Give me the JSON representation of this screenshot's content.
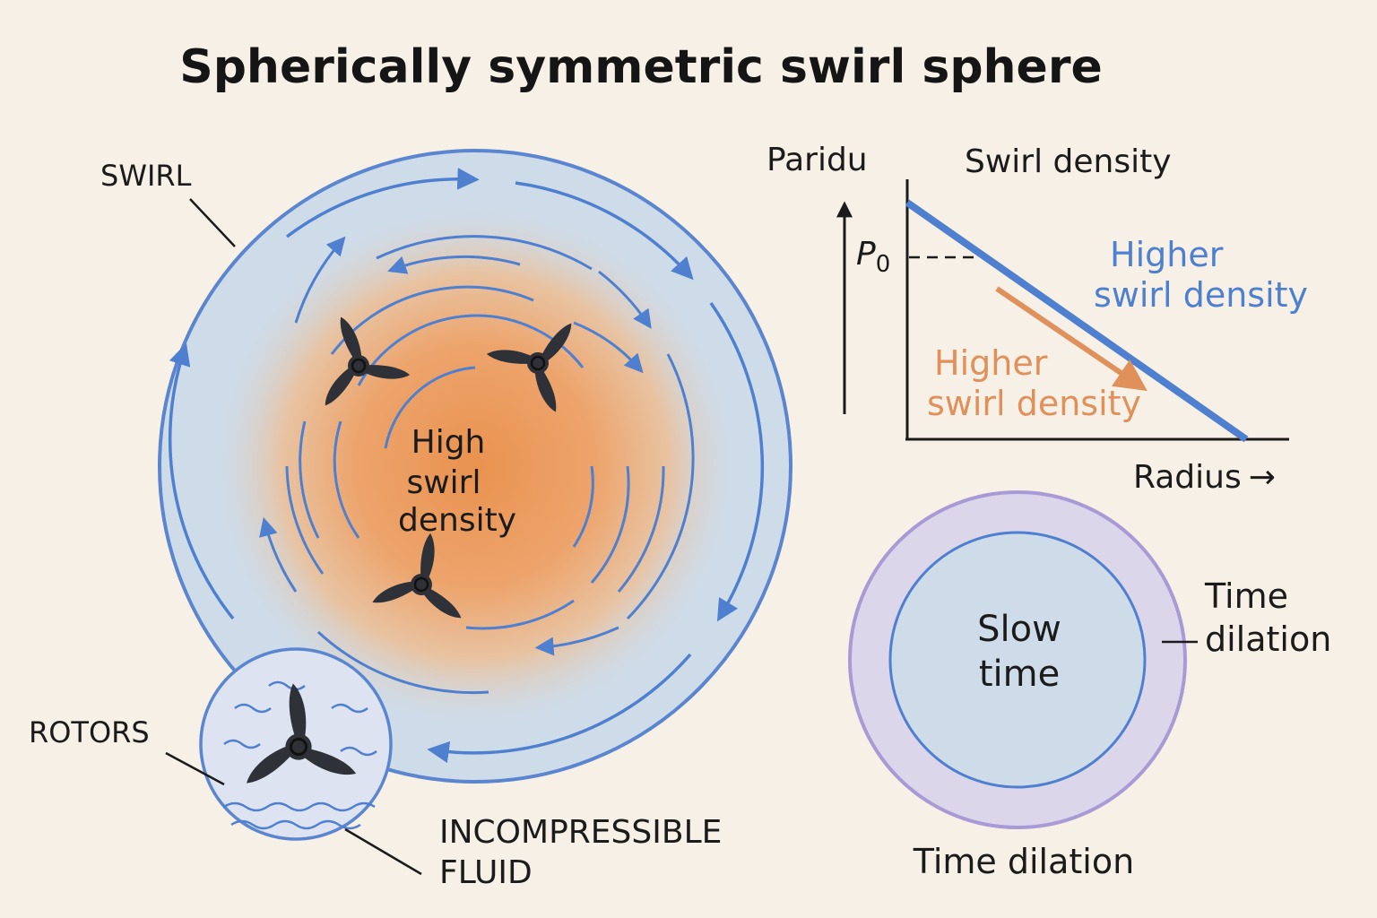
{
  "title": "Spherically symmetric swirl sphere",
  "sphere": {
    "swirl_label": "SWIRL",
    "core_label_lines": [
      "High",
      "swirl",
      "density"
    ],
    "rotors_label": "ROTORS",
    "fluid_label_lines": [
      "INCOMPRESSIBLE",
      "FLUID"
    ]
  },
  "graph": {
    "y_axis_label": "Paridu",
    "title": "Swirl density",
    "p0_label": "P",
    "p0_subscript": "0",
    "x_axis_label": "Radius",
    "x_axis_arrow": "→",
    "blue_annotation_lines": [
      "Higher",
      "swirl density"
    ],
    "orange_annotation_lines": [
      "Higher",
      "swirl density"
    ]
  },
  "time_circle": {
    "inner_label_lines": [
      "Slow",
      "time"
    ],
    "side_label_lines": [
      "Time",
      "dilation"
    ],
    "bottom_label": "Time dilation"
  },
  "colors": {
    "background": "#f7f0e6",
    "blue": "#4f7fcf",
    "orange": "#e0905a",
    "rotor": "#2e3238",
    "purple_ring": "#a99ad6"
  }
}
